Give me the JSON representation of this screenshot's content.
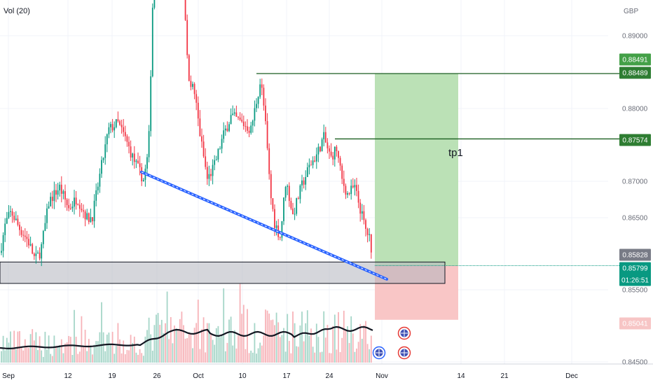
{
  "chart_data": {
    "type": "candlestick",
    "currency": "GBP",
    "indicator_label": "Vol (20)",
    "y_ticks": [
      "0.89000",
      "0.88000",
      "0.87000",
      "0.86500",
      "0.85500",
      "0.84500"
    ],
    "x_ticks": [
      "Sep",
      "12",
      "19",
      "26",
      "Oct",
      "10",
      "17",
      "24",
      "Nov",
      "14",
      "21",
      "Dec"
    ],
    "price_badges": [
      {
        "label": "0.88491",
        "price": 0.88491,
        "color": "#43a047"
      },
      {
        "label": "0.88489",
        "price": 0.88489,
        "color": "#2e7d32"
      },
      {
        "label": "0.87574",
        "price": 0.87574,
        "color": "#2e7d32"
      },
      {
        "label": "0.85828",
        "price": 0.85828,
        "color": "#787b86"
      },
      {
        "label": "0.85799",
        "price": 0.85799,
        "color": "#089981"
      },
      {
        "label": "0.85041",
        "price": 0.85041,
        "color": "#f7c5c5",
        "text_color": "#c62828"
      }
    ],
    "countdown": "01:26:51",
    "annotation": "tp1",
    "levels": {
      "target": 0.88489,
      "tp1": 0.87574,
      "entry": 0.85799,
      "stop": 0.85041
    },
    "support_zone": {
      "from": 0.8555,
      "to": 0.8585
    },
    "trendline": {
      "from": 0.8711,
      "to": 0.8561
    },
    "colors": {
      "up": "#089981",
      "down": "#f23645",
      "vol_up": "#a5d6c8",
      "vol_down": "#f7b3b8",
      "profit": "#b7dfb2",
      "loss": "#f9c3c3",
      "trendline": "#2962ff",
      "level": "#1b5e20"
    }
  }
}
